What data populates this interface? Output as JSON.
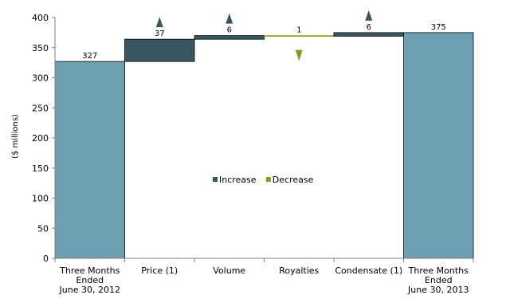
{
  "chart_data": {
    "type": "bar",
    "subtype": "waterfall",
    "ylabel": "($ millions)",
    "ylim": [
      0,
      400
    ],
    "yticks": [
      0,
      50,
      100,
      150,
      200,
      250,
      300,
      350,
      400
    ],
    "grid": false,
    "legend_position": "center",
    "legend": [
      {
        "name": "Increase",
        "color": "#385761"
      },
      {
        "name": "Decrease",
        "color": "#8a9a20"
      }
    ],
    "categories": [
      [
        "Three Months",
        "Ended",
        "June 30, 2012"
      ],
      [
        "Price (1)"
      ],
      [
        "Volume"
      ],
      [
        "Royalties"
      ],
      [
        "Condensate (1)"
      ],
      [
        "Three Months",
        "Ended",
        "June 30, 2013"
      ]
    ],
    "bars": [
      {
        "kind": "total",
        "value": 327,
        "label": "327"
      },
      {
        "kind": "increase",
        "value": 37,
        "label": "37"
      },
      {
        "kind": "increase",
        "value": 6,
        "label": "6"
      },
      {
        "kind": "decrease",
        "value": 1,
        "label": "1"
      },
      {
        "kind": "increase",
        "value": 6,
        "label": "6"
      },
      {
        "kind": "total",
        "value": 375,
        "label": "375"
      }
    ],
    "colors": {
      "total": "#6f9fb2",
      "increase": "#385761",
      "decrease": "#8a9a20",
      "decrease_bar": "#c8c880",
      "axis": "#7f7f7f"
    }
  }
}
